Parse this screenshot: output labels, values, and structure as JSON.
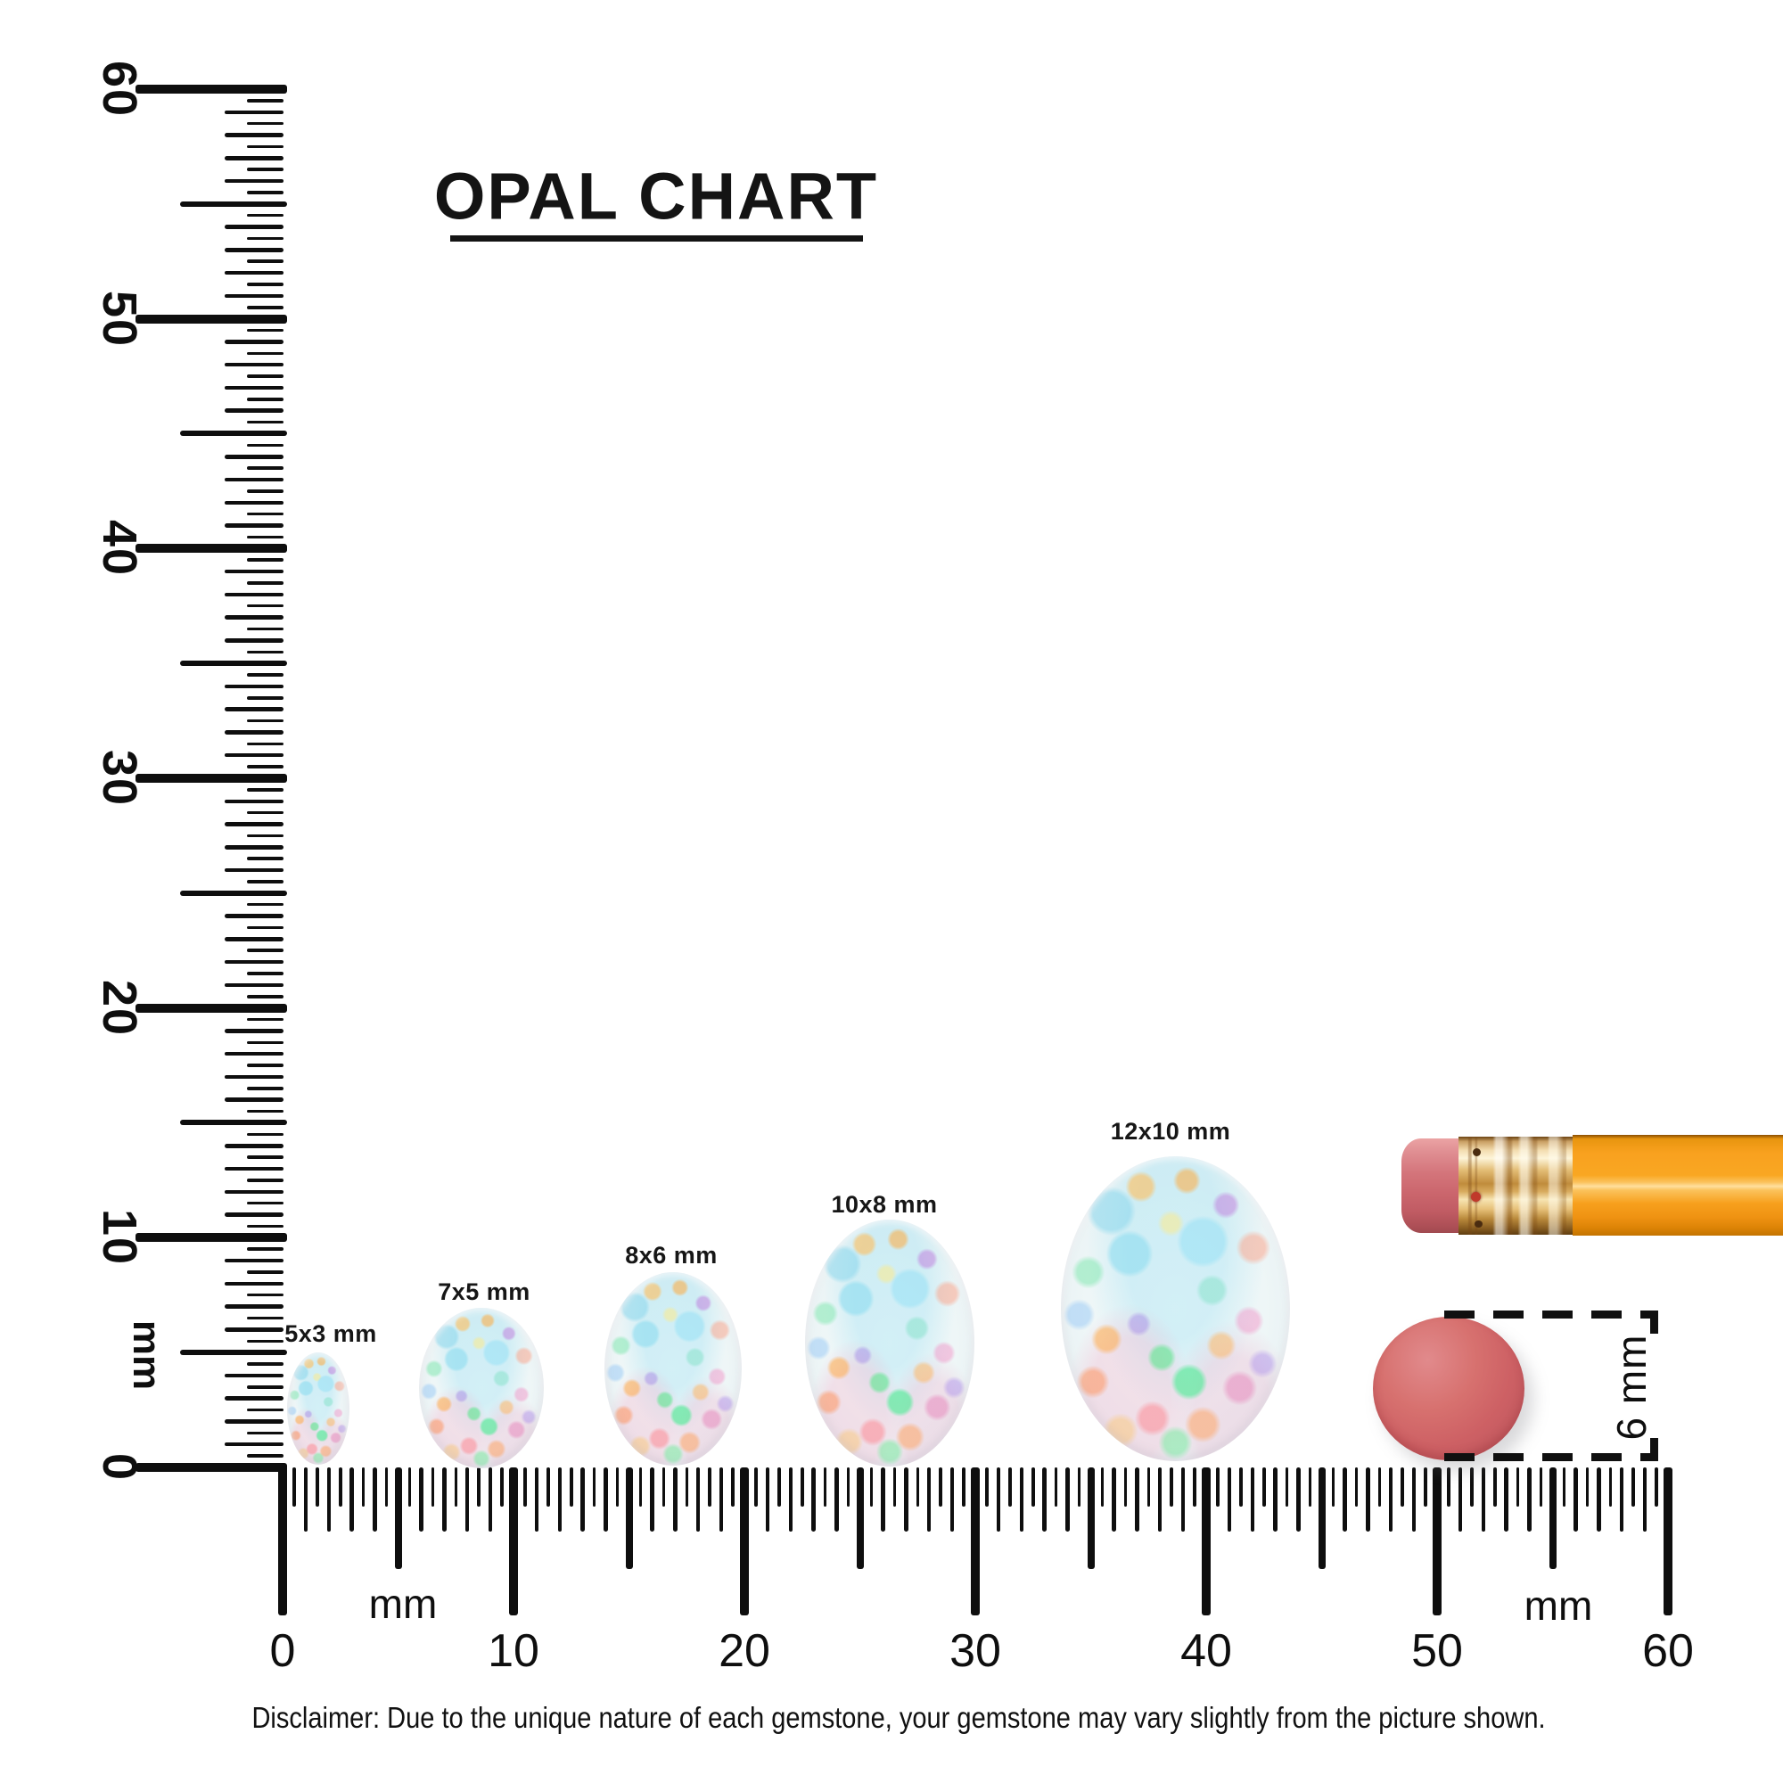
{
  "title": {
    "text": "OPAL CHART"
  },
  "rulers": {
    "vertical": {
      "unit_label": "mm",
      "tick_labels": [
        "60",
        "50",
        "40",
        "30",
        "20",
        "10",
        "0"
      ]
    },
    "horizontal": {
      "unit_label_left": "mm",
      "unit_label_right": "mm",
      "tick_labels": [
        "0",
        "10",
        "20",
        "30",
        "40",
        "50",
        "60"
      ]
    }
  },
  "opals": [
    {
      "label": "5x3 mm"
    },
    {
      "label": "7x5 mm"
    },
    {
      "label": "8x6 mm"
    },
    {
      "label": "10x8 mm"
    },
    {
      "label": "12x10 mm"
    }
  ],
  "pencil": {
    "eraser_dimension_label": "6 mm"
  },
  "disclaimer": {
    "text": "Disclaimer: Due to the unique nature of each gemstone, your gemstone may vary slightly from the picture shown."
  },
  "colors": {
    "ink": "#0e0e0e",
    "pencil_body_orange": "#f89c1b",
    "ferrule_gold": "#d9a85c",
    "eraser_pink": "#cd6064",
    "opal_base": "#eef6f7"
  }
}
